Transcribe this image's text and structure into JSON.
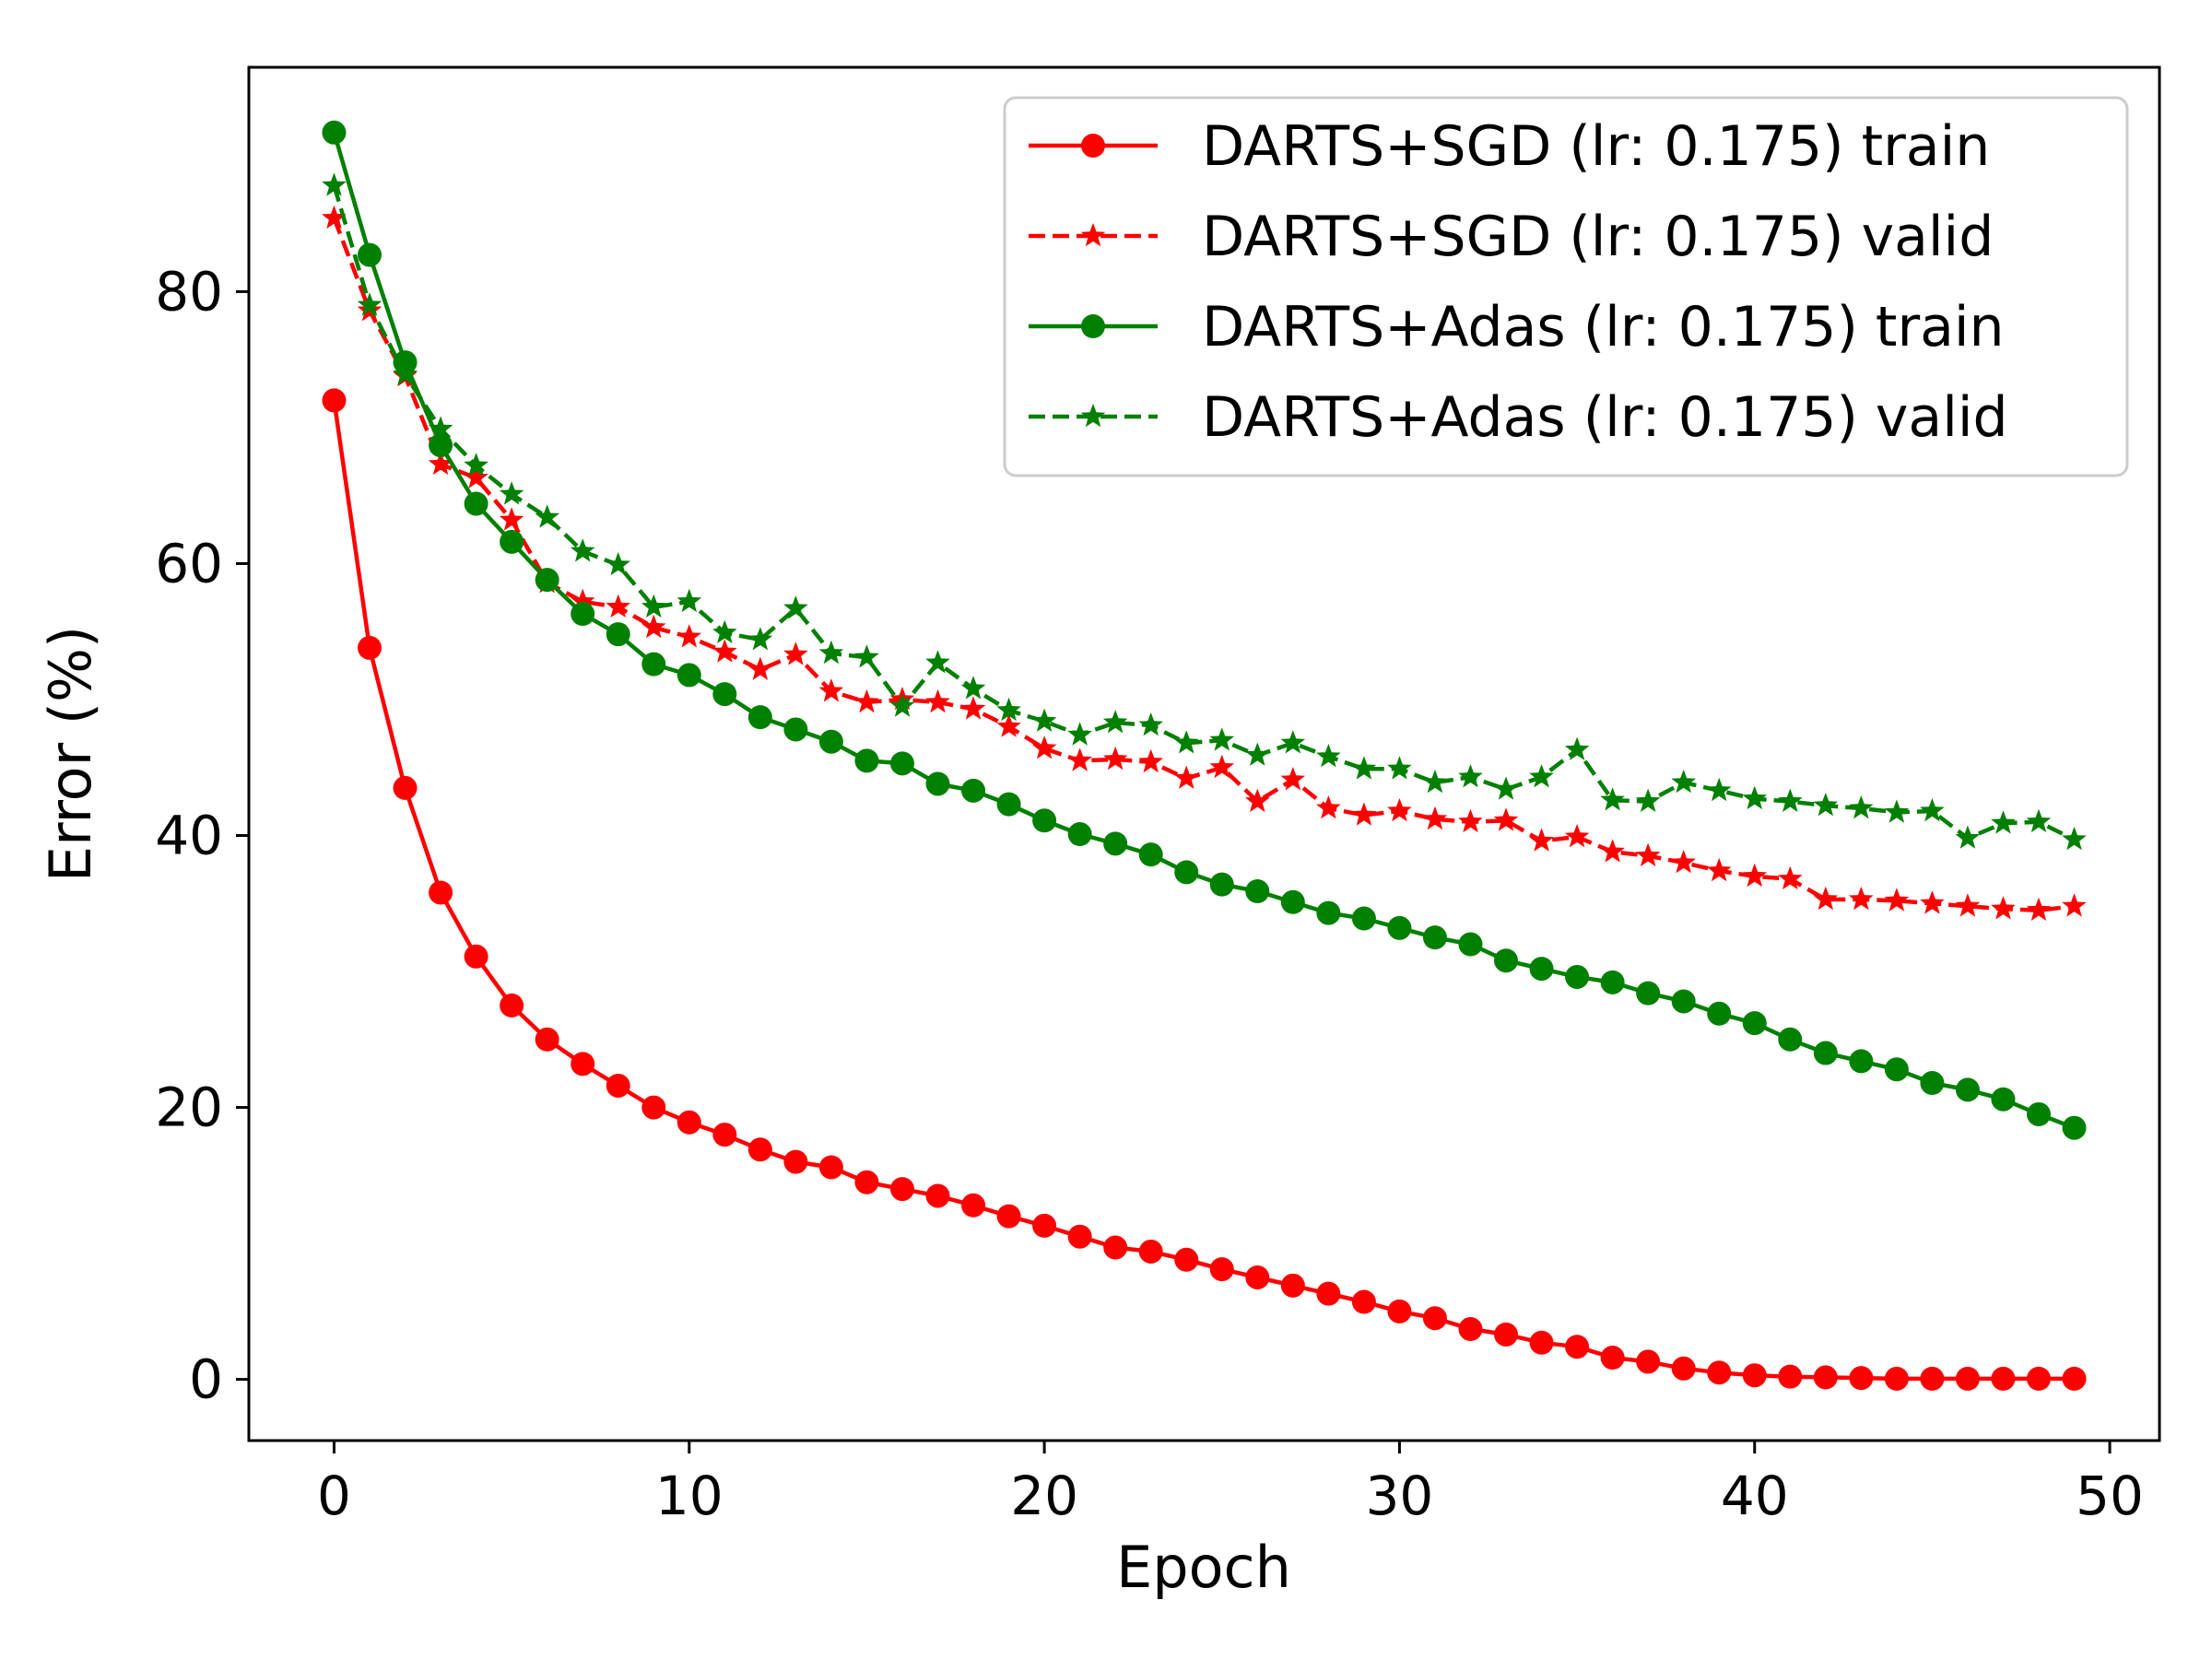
{
  "chart_data": {
    "type": "line",
    "title": "",
    "xlabel": "Epoch",
    "ylabel": "Error (%)",
    "xlim": [
      -2.4,
      51.4
    ],
    "ylim": [
      -4.5,
      96.5
    ],
    "xticks": [
      0,
      10,
      20,
      30,
      40,
      50
    ],
    "yticks": [
      0,
      20,
      40,
      60,
      80
    ],
    "grid": false,
    "legend_position": "top-right",
    "x": [
      0,
      1,
      2,
      3,
      4,
      5,
      6,
      7,
      8,
      9,
      10,
      11,
      12,
      13,
      14,
      15,
      16,
      17,
      18,
      19,
      20,
      21,
      22,
      23,
      24,
      25,
      26,
      27,
      28,
      29,
      30,
      31,
      32,
      33,
      34,
      35,
      36,
      37,
      38,
      39,
      40,
      41,
      42,
      43,
      44,
      45,
      46,
      47,
      48,
      49
    ],
    "series": [
      {
        "name": "DARTS+SGD (lr: 0.175) train",
        "color": "#ff0000",
        "linestyle": "solid",
        "marker": "circle",
        "values": [
          72.0,
          53.8,
          43.5,
          35.8,
          31.1,
          27.5,
          25.0,
          23.2,
          21.6,
          20.0,
          18.9,
          18.0,
          16.9,
          16.0,
          15.6,
          14.5,
          14.0,
          13.5,
          12.8,
          12.0,
          11.3,
          10.5,
          9.7,
          9.4,
          8.8,
          8.1,
          7.5,
          6.9,
          6.3,
          5.7,
          5.0,
          4.5,
          3.7,
          3.3,
          2.7,
          2.4,
          1.6,
          1.3,
          0.8,
          0.5,
          0.3,
          0.2,
          0.15,
          0.1,
          0.05,
          0.05,
          0.05,
          0.05,
          0.05,
          0.05
        ]
      },
      {
        "name": "DARTS+SGD (lr: 0.175) valid",
        "color": "#ff0000",
        "linestyle": "dashed",
        "marker": "star",
        "values": [
          85.4,
          78.6,
          73.8,
          67.3,
          66.3,
          63.2,
          58.6,
          57.2,
          56.8,
          55.3,
          54.6,
          53.5,
          52.2,
          53.3,
          50.6,
          49.8,
          50.0,
          49.8,
          49.3,
          48.0,
          46.4,
          45.5,
          45.6,
          45.4,
          44.2,
          45.0,
          42.5,
          44.1,
          42.0,
          41.5,
          41.8,
          41.2,
          41.0,
          41.1,
          39.6,
          39.9,
          38.8,
          38.5,
          38.0,
          37.4,
          37.0,
          36.8,
          35.3,
          35.3,
          35.2,
          35.0,
          34.8,
          34.6,
          34.5,
          34.8
        ]
      },
      {
        "name": "DARTS+Adas (lr: 0.175) train",
        "color": "#008000",
        "linestyle": "solid",
        "marker": "circle",
        "values": [
          91.7,
          82.7,
          74.8,
          68.7,
          64.4,
          61.6,
          58.8,
          56.3,
          54.8,
          52.6,
          51.8,
          50.4,
          48.7,
          47.8,
          46.9,
          45.5,
          45.3,
          43.8,
          43.3,
          42.3,
          41.1,
          40.1,
          39.4,
          38.6,
          37.3,
          36.4,
          35.9,
          35.1,
          34.3,
          33.9,
          33.2,
          32.5,
          32.0,
          30.8,
          30.2,
          29.6,
          29.2,
          28.4,
          27.8,
          26.9,
          26.2,
          25.0,
          24.0,
          23.4,
          22.8,
          21.8,
          21.3,
          20.6,
          19.5,
          18.5
        ]
      },
      {
        "name": "DARTS+Adas (lr: 0.175) valid",
        "color": "#008000",
        "linestyle": "dashed",
        "marker": "star",
        "values": [
          87.8,
          79.0,
          73.9,
          69.9,
          67.2,
          65.1,
          63.4,
          60.9,
          59.9,
          56.8,
          57.2,
          54.9,
          54.4,
          56.7,
          53.4,
          53.1,
          49.5,
          52.7,
          50.8,
          49.2,
          48.4,
          47.4,
          48.3,
          48.1,
          46.8,
          47.0,
          45.9,
          46.8,
          45.8,
          44.9,
          44.9,
          43.9,
          44.3,
          43.4,
          44.3,
          46.3,
          42.6,
          42.5,
          43.9,
          43.3,
          42.7,
          42.5,
          42.2,
          42.0,
          41.7,
          41.8,
          39.8,
          40.9,
          41.0,
          39.7
        ]
      }
    ]
  }
}
